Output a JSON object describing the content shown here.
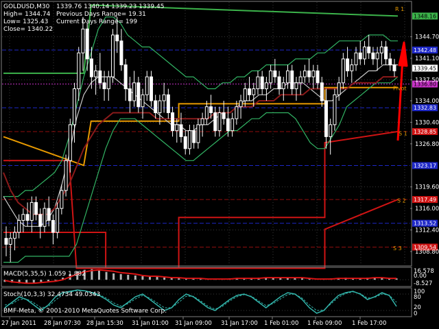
{
  "header": {
    "symbol_tf": "GOLDUSD,M30",
    "ohlc": "1339.76 1340.14 1339.23 1339.45",
    "high": "High= 1344.74",
    "prev_range": "Previous Days Range= 19.31",
    "low": "Low= 1325.43",
    "curr_range": "Current Days Range= 199",
    "close": "Close= 1340.22"
  },
  "colors": {
    "background": "#000000",
    "grid": "#3a3a3a",
    "candle": "#ffffff",
    "bollinger": "#32b464",
    "ma_fast": "#c8c8c8",
    "ma_slow": "#8b1a1a",
    "pivot": "#e89a00",
    "resistance": "#3cb44b",
    "support": "#d01414",
    "level_blue": "#1e28c8",
    "arrow": "#ff0000",
    "macd_hist": "#b4b4b4",
    "macd_signal": "#dc1414",
    "stoch_main": "#32b4aa",
    "stoch_signal": "#32b4aa"
  },
  "price_axis_ticks": [
    "1344.70",
    "1341.10",
    "1337.50",
    "1334.00",
    "1330.40",
    "1326.80",
    "1319.60",
    "1316.00",
    "1312.40",
    "1308.80"
  ],
  "price_tags": [
    {
      "label": "1348.16",
      "type": "resistance"
    },
    {
      "label": "1342.48",
      "type": "blue"
    },
    {
      "label": "1339.45",
      "type": "current"
    },
    {
      "label": "1336.80",
      "type": "magenta"
    },
    {
      "label": "1332.83",
      "type": "blue"
    },
    {
      "label": "1328.85",
      "type": "support"
    },
    {
      "label": "1323.17",
      "type": "blue"
    },
    {
      "label": "1317.49",
      "type": "support"
    },
    {
      "label": "1313.52",
      "type": "blue"
    },
    {
      "label": "1309.54",
      "type": "support"
    }
  ],
  "level_labels": [
    {
      "label": "R 1",
      "type": "resistance"
    },
    {
      "label": "S 1",
      "type": "support"
    },
    {
      "label": "S 2",
      "type": "support"
    },
    {
      "label": "S 3",
      "type": "support"
    },
    {
      "label": "Pivot",
      "type": "pivot"
    }
  ],
  "macd": {
    "label": "MACD(5,35,5) 1.059 1.882",
    "ticks": [
      "16.578",
      "0.00",
      "-8.527"
    ]
  },
  "stoch": {
    "label": "Stoch(10,3,3) 32.4734 49.0343",
    "ticks": [
      "100",
      "80",
      "20",
      "0"
    ]
  },
  "footer": "BMF-Meta, © 2001-2010 MetaQuotes Software Corp.",
  "time_labels": [
    "27 Jan 2011",
    "28 Jan 07:30",
    "28 Jan 15:30",
    "31 Jan 01:00",
    "31 Jan 09:00",
    "31 Jan 17:00",
    "1 Feb 01:00",
    "1 Feb 09:00",
    "1 Feb 17:00"
  ],
  "chart_data": {
    "type": "candlestick",
    "symbol": "GOLDUSD",
    "timeframe": "M30",
    "price_range": [
      1306.5,
      1350.5
    ],
    "bars": [
      [
        1311,
        1313,
        1308,
        1310
      ],
      [
        1310,
        1312,
        1307,
        1311
      ],
      [
        1311,
        1313,
        1309,
        1312
      ],
      [
        1312,
        1315,
        1311,
        1314
      ],
      [
        1314,
        1316,
        1312,
        1315
      ],
      [
        1315,
        1317,
        1313,
        1314
      ],
      [
        1314,
        1318,
        1312,
        1317
      ],
      [
        1317,
        1318,
        1314,
        1315
      ],
      [
        1315,
        1316,
        1311,
        1313
      ],
      [
        1313,
        1317,
        1312,
        1316
      ],
      [
        1316,
        1318,
        1313,
        1314
      ],
      [
        1314,
        1315,
        1310,
        1312
      ],
      [
        1312,
        1317,
        1311,
        1316
      ],
      [
        1316,
        1320,
        1315,
        1319
      ],
      [
        1319,
        1325,
        1318,
        1324
      ],
      [
        1324,
        1331,
        1322,
        1330
      ],
      [
        1330,
        1337,
        1327,
        1336
      ],
      [
        1336,
        1343,
        1334,
        1342
      ],
      [
        1342,
        1348,
        1339,
        1346
      ],
      [
        1346,
        1347,
        1339,
        1341
      ],
      [
        1341,
        1343,
        1336,
        1338
      ],
      [
        1338,
        1340,
        1335,
        1339
      ],
      [
        1339,
        1342,
        1336,
        1337
      ],
      [
        1337,
        1339,
        1334,
        1336
      ],
      [
        1336,
        1339,
        1334,
        1338
      ],
      [
        1338,
        1346,
        1337,
        1345
      ],
      [
        1345,
        1348,
        1342,
        1344
      ],
      [
        1344,
        1346,
        1339,
        1340
      ],
      [
        1340,
        1341,
        1334,
        1336
      ],
      [
        1336,
        1338,
        1332,
        1334
      ],
      [
        1334,
        1339,
        1333,
        1337
      ],
      [
        1337,
        1338,
        1332,
        1333
      ],
      [
        1333,
        1336,
        1331,
        1335
      ],
      [
        1335,
        1339,
        1334,
        1338
      ],
      [
        1338,
        1339,
        1333,
        1334
      ],
      [
        1334,
        1335,
        1331,
        1332
      ],
      [
        1332,
        1335,
        1330,
        1334
      ],
      [
        1334,
        1337,
        1332,
        1335
      ],
      [
        1335,
        1336,
        1331,
        1332
      ],
      [
        1332,
        1333,
        1328,
        1329
      ],
      [
        1329,
        1331,
        1327,
        1330
      ],
      [
        1330,
        1332,
        1327,
        1328
      ],
      [
        1328,
        1329,
        1325,
        1326
      ],
      [
        1326,
        1330,
        1325,
        1329
      ],
      [
        1329,
        1330,
        1326,
        1327
      ],
      [
        1327,
        1331,
        1326,
        1330
      ],
      [
        1330,
        1332,
        1328,
        1331
      ],
      [
        1331,
        1334,
        1330,
        1333
      ],
      [
        1333,
        1335,
        1331,
        1332
      ],
      [
        1332,
        1333,
        1328,
        1329
      ],
      [
        1329,
        1333,
        1328,
        1332
      ],
      [
        1332,
        1334,
        1330,
        1331
      ],
      [
        1331,
        1333,
        1328,
        1329
      ],
      [
        1329,
        1332,
        1328,
        1331
      ],
      [
        1331,
        1334,
        1330,
        1333
      ],
      [
        1333,
        1335,
        1331,
        1334
      ],
      [
        1334,
        1337,
        1333,
        1336
      ],
      [
        1336,
        1338,
        1334,
        1335
      ],
      [
        1335,
        1337,
        1333,
        1336
      ],
      [
        1336,
        1339,
        1335,
        1338
      ],
      [
        1338,
        1339,
        1335,
        1336
      ],
      [
        1336,
        1338,
        1334,
        1337
      ],
      [
        1337,
        1340,
        1336,
        1339
      ],
      [
        1339,
        1341,
        1337,
        1338
      ],
      [
        1338,
        1339,
        1335,
        1336
      ],
      [
        1336,
        1338,
        1334,
        1337
      ],
      [
        1337,
        1340,
        1336,
        1339
      ],
      [
        1339,
        1340,
        1335,
        1336
      ],
      [
        1336,
        1338,
        1334,
        1337
      ],
      [
        1337,
        1339,
        1335,
        1338
      ],
      [
        1338,
        1340,
        1337,
        1339
      ],
      [
        1339,
        1341,
        1337,
        1338
      ],
      [
        1338,
        1340,
        1336,
        1339
      ],
      [
        1339,
        1340,
        1336,
        1337
      ],
      [
        1337,
        1338,
        1333,
        1334
      ],
      [
        1334,
        1336,
        1326,
        1328
      ],
      [
        1328,
        1331,
        1325,
        1330
      ],
      [
        1330,
        1336,
        1329,
        1335
      ],
      [
        1335,
        1338,
        1334,
        1337
      ],
      [
        1337,
        1342,
        1336,
        1341
      ],
      [
        1341,
        1343,
        1338,
        1339
      ],
      [
        1339,
        1341,
        1337,
        1340
      ],
      [
        1340,
        1343,
        1339,
        1342
      ],
      [
        1342,
        1344,
        1340,
        1341
      ],
      [
        1341,
        1344,
        1340,
        1343
      ],
      [
        1343,
        1345,
        1341,
        1342
      ],
      [
        1342,
        1343,
        1340,
        1341
      ],
      [
        1341,
        1343,
        1339,
        1342
      ],
      [
        1342,
        1344,
        1340,
        1343
      ],
      [
        1343,
        1344,
        1340,
        1341
      ],
      [
        1341,
        1342,
        1339,
        1340
      ],
      [
        1340,
        1341,
        1338,
        1339
      ]
    ],
    "bollinger_upper": [
      1318,
      1318,
      1318,
      1319,
      1319,
      1320,
      1321,
      1322,
      1324,
      1328,
      1333,
      1338,
      1342,
      1346,
      1348,
      1348,
      1347,
      1345,
      1344,
      1343,
      1343,
      1342,
      1341,
      1340,
      1339,
      1338,
      1338,
      1337,
      1336,
      1336,
      1337,
      1337,
      1338,
      1338,
      1339,
      1339,
      1340,
      1340,
      1340,
      1340,
      1341,
      1341,
      1341,
      1342,
      1342,
      1343,
      1344,
      1344,
      1344,
      1344,
      1345,
      1345,
      1345,
      1344,
      1344
    ],
    "bollinger_lower": [
      1307,
      1307,
      1307,
      1308,
      1308,
      1308,
      1308,
      1308,
      1308,
      1308,
      1310,
      1314,
      1318,
      1322,
      1326,
      1329,
      1331,
      1331,
      1331,
      1330,
      1329,
      1328,
      1327,
      1326,
      1325,
      1324,
      1324,
      1325,
      1326,
      1327,
      1328,
      1329,
      1329,
      1330,
      1331,
      1331,
      1332,
      1332,
      1332,
      1332,
      1331,
      1329,
      1327,
      1326,
      1326,
      1328,
      1330,
      1333,
      1334,
      1335,
      1336,
      1337,
      1337,
      1337,
      1338
    ],
    "ma_fast": [
      1318,
      1316,
      1314,
      1313,
      1313,
      1313,
      1314,
      1316,
      1320,
      1325,
      1331,
      1335,
      1337,
      1338,
      1338,
      1338,
      1337,
      1336,
      1335,
      1334,
      1333,
      1332,
      1331,
      1330,
      1330,
      1329,
      1329,
      1330,
      1330,
      1331,
      1332,
      1332,
      1333,
      1334,
      1334,
      1335,
      1335,
      1336,
      1336,
      1337,
      1337,
      1337,
      1336,
      1335,
      1334,
      1334,
      1335,
      1336,
      1337,
      1338,
      1339,
      1339,
      1340,
      1340,
      1340
    ],
    "ma_slow": [
      1322,
      1319,
      1317,
      1316,
      1315,
      1315,
      1315,
      1316,
      1318,
      1320,
      1323,
      1326,
      1328,
      1330,
      1331,
      1332,
      1332,
      1332,
      1332,
      1332,
      1332,
      1331,
      1331,
      1331,
      1331,
      1331,
      1331,
      1331,
      1331,
      1332,
      1332,
      1332,
      1333,
      1333,
      1333,
      1334,
      1334,
      1334,
      1335,
      1335,
      1335,
      1335,
      1336,
      1336,
      1336,
      1336,
      1336,
      1336,
      1337,
      1337,
      1337,
      1337,
      1338,
      1338,
      1338
    ],
    "pivot_steps": [
      [
        0,
        1328
      ],
      [
        11,
        1323.2
      ],
      [
        12,
        1330.6
      ],
      [
        24,
        1330.6
      ],
      [
        24,
        1333.5
      ],
      [
        44,
        1333.5
      ],
      [
        44,
        1336.2
      ],
      [
        54,
        1336.2
      ]
    ],
    "r1_steps": [
      [
        0,
        1338.6
      ],
      [
        11,
        1338.6
      ],
      [
        12,
        1350
      ],
      [
        54,
        1348.16
      ]
    ],
    "s1_steps": [
      [
        0,
        1324
      ],
      [
        9,
        1324
      ],
      [
        10,
        1306
      ],
      [
        24,
        1306
      ],
      [
        24,
        1314.5
      ],
      [
        44,
        1314.5
      ],
      [
        44,
        1327
      ],
      [
        54,
        1328.85
      ]
    ],
    "s2_steps": [
      [
        0,
        1312
      ],
      [
        9,
        1312
      ],
      [
        14,
        1312
      ],
      [
        14,
        1306
      ],
      [
        44,
        1306
      ],
      [
        44,
        1312.5
      ],
      [
        54,
        1317.49
      ]
    ],
    "macd_hist": [
      -3,
      -4,
      -5,
      -5,
      -4,
      -3,
      -2,
      -1,
      3,
      8,
      12,
      14,
      15,
      13,
      11,
      9,
      8,
      7,
      6,
      5,
      4,
      4,
      3,
      3,
      2,
      2,
      2,
      1,
      1,
      1,
      1,
      2,
      2,
      2,
      2,
      3,
      3,
      3,
      3,
      3,
      3,
      2,
      1,
      0,
      1,
      2,
      2,
      3,
      2,
      2,
      3,
      3,
      3,
      2,
      2
    ],
    "macd_signal": [
      -1,
      -3,
      -4,
      -5,
      -5,
      -4,
      -3,
      -2,
      0,
      4,
      8,
      11,
      13,
      14,
      13,
      12,
      10,
      9,
      8,
      6,
      5,
      5,
      4,
      3,
      3,
      2,
      2,
      2,
      1,
      1,
      1,
      1,
      2,
      2,
      2,
      2,
      3,
      3,
      3,
      3,
      3,
      3,
      2,
      1,
      1,
      1,
      2,
      2,
      2,
      2,
      2,
      3,
      3,
      2,
      2
    ],
    "stoch_main": [
      30,
      50,
      70,
      60,
      40,
      20,
      40,
      70,
      85,
      90,
      95,
      92,
      85,
      75,
      60,
      40,
      30,
      50,
      70,
      80,
      60,
      40,
      20,
      30,
      60,
      80,
      70,
      50,
      30,
      20,
      40,
      60,
      75,
      80,
      70,
      50,
      30,
      50,
      70,
      85,
      80,
      60,
      30,
      10,
      20,
      50,
      75,
      85,
      90,
      80,
      60,
      70,
      85,
      75,
      35
    ],
    "stoch_signal": [
      40,
      45,
      60,
      62,
      48,
      30,
      35,
      58,
      78,
      88,
      92,
      92,
      87,
      78,
      65,
      48,
      36,
      45,
      62,
      75,
      65,
      48,
      30,
      30,
      50,
      72,
      72,
      55,
      36,
      25,
      35,
      55,
      70,
      78,
      72,
      55,
      38,
      45,
      62,
      78,
      80,
      65,
      40,
      20,
      22,
      45,
      68,
      82,
      88,
      82,
      65,
      68,
      80,
      76,
      50
    ],
    "level_values": {
      "R1": 1348.16,
      "blue_1": 1342.48,
      "current": 1339.45,
      "magenta": 1336.8,
      "blue_2": 1332.83,
      "S1": 1328.85,
      "blue_3": 1323.17,
      "S2": 1317.49,
      "blue_4": 1313.52,
      "S3": 1309.54
    },
    "macd_range": [
      -8.527,
      16.578
    ],
    "stoch_range": [
      0,
      100
    ],
    "stoch_levels": [
      20,
      80
    ],
    "grid": true
  }
}
